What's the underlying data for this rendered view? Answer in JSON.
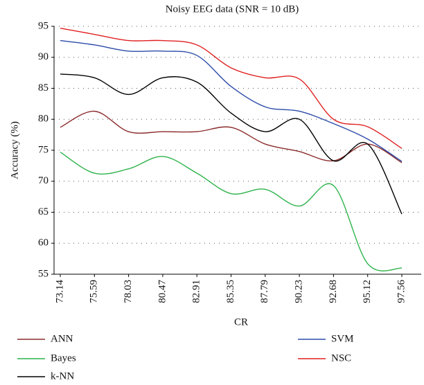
{
  "chart_data": {
    "type": "line",
    "title": "Noisy EEG data (SNR = 10 dB)",
    "x_label": "CR",
    "y_label": "Accuracy (%)",
    "categories": [
      "73.14",
      "75.59",
      "78.03",
      "80.47",
      "82.91",
      "85.35",
      "87.79",
      "90.23",
      "92.68",
      "95.12",
      "97.56"
    ],
    "series": [
      {
        "name": "ANN",
        "color": "#8b2a2a",
        "values": [
          78.7,
          81.3,
          78.0,
          78.0,
          78.0,
          78.7,
          76.0,
          74.8,
          73.3,
          76.0,
          73.0
        ]
      },
      {
        "name": "Bayes",
        "color": "#2db34a",
        "values": [
          74.7,
          71.3,
          72.0,
          74.0,
          71.3,
          68.0,
          68.7,
          66.0,
          69.3,
          56.7,
          56.0
        ]
      },
      {
        "name": "k-NN",
        "color": "#000000",
        "values": [
          87.3,
          86.7,
          84.0,
          86.7,
          86.0,
          81.0,
          78.0,
          80.0,
          73.3,
          76.0,
          64.7
        ]
      },
      {
        "name": "SVM",
        "color": "#2b4aa8",
        "values": [
          92.7,
          92.0,
          91.0,
          91.0,
          90.3,
          85.3,
          82.0,
          81.3,
          79.3,
          76.8,
          73.2
        ]
      },
      {
        "name": "NSC",
        "color": "#e02020",
        "values": [
          94.7,
          93.7,
          92.7,
          92.7,
          92.0,
          88.3,
          86.7,
          86.5,
          80.0,
          78.8,
          75.3
        ]
      }
    ],
    "ylim": [
      55,
      95
    ],
    "yticks": [
      55,
      60,
      65,
      70,
      75,
      80,
      85,
      90,
      95
    ],
    "grid": true,
    "legend": "bottom"
  }
}
